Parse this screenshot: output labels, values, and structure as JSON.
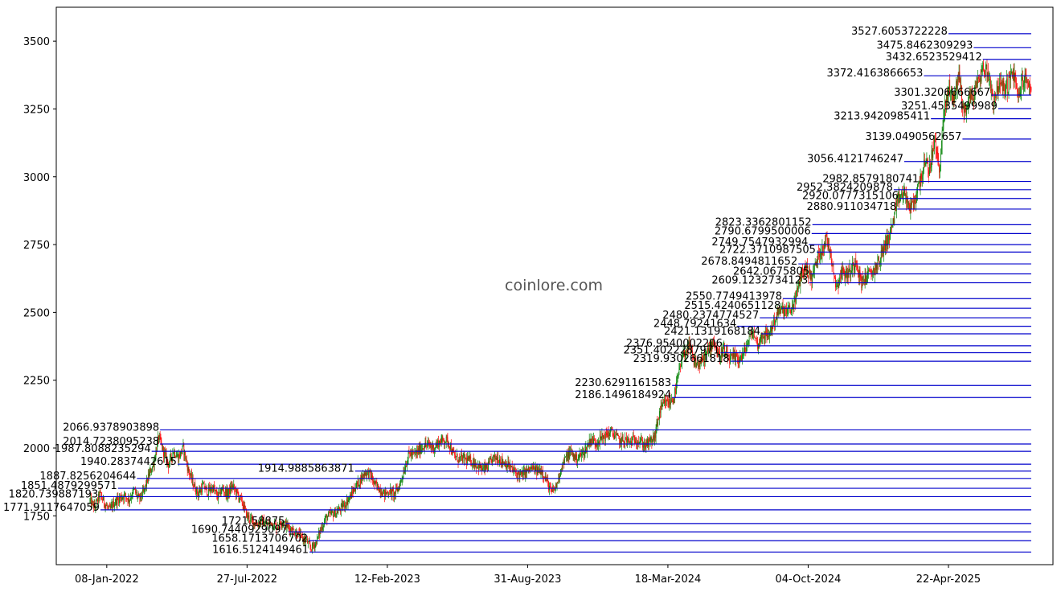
{
  "chart_data": {
    "type": "candlestick",
    "watermark": "coinlore.com",
    "xlim": [
      "2021-10-28",
      "2025-09-18"
    ],
    "ylim": [
      1570,
      3625
    ],
    "x_ticks": [
      {
        "date": "2022-01-08",
        "label": "08-Jan-2022"
      },
      {
        "date": "2022-07-27",
        "label": "27-Jul-2022"
      },
      {
        "date": "2023-02-12",
        "label": "12-Feb-2023"
      },
      {
        "date": "2023-08-31",
        "label": "31-Aug-2023"
      },
      {
        "date": "2024-03-18",
        "label": "18-Mar-2024"
      },
      {
        "date": "2024-10-04",
        "label": "04-Oct-2024"
      },
      {
        "date": "2025-04-22",
        "label": "22-Apr-2025"
      }
    ],
    "y_ticks": [
      {
        "value": 1750,
        "label": "1750"
      },
      {
        "value": 2000,
        "label": "2000"
      },
      {
        "value": 2250,
        "label": "2250"
      },
      {
        "value": 2500,
        "label": "2500"
      },
      {
        "value": 2750,
        "label": "2750"
      },
      {
        "value": 3000,
        "label": "3000"
      },
      {
        "value": 3250,
        "label": "3250"
      },
      {
        "value": 3500,
        "label": "3500"
      }
    ],
    "colors": {
      "up": "#008000",
      "down": "#ff0000",
      "levels": "#0000cc",
      "frame": "#000000"
    },
    "levels_end_date": "2025-08-18",
    "levels": [
      {
        "value": 3527.6053722228,
        "label": "3527.6053722228",
        "start": "2025-04-22"
      },
      {
        "value": 3475.8462309293,
        "label": "3475.8462309293",
        "start": "2025-05-28"
      },
      {
        "value": 3432.6523529412,
        "label": "3432.6523529412",
        "start": "2025-06-10"
      },
      {
        "value": 3372.4163866653,
        "label": "3372.4163866653",
        "start": "2025-03-18"
      },
      {
        "value": 3301.3206666667,
        "label": "3301.3206666667",
        "start": "2025-06-22"
      },
      {
        "value": 3251.4535499989,
        "label": "3251.4535499989",
        "start": "2025-07-02"
      },
      {
        "value": 3213.9420985411,
        "label": "3213.9420985411",
        "start": "2025-03-28"
      },
      {
        "value": 3139.0490562657,
        "label": "3139.0490562657",
        "start": "2025-05-12"
      },
      {
        "value": 3056.4121746247,
        "label": "3056.4121746247",
        "start": "2025-02-18"
      },
      {
        "value": 2982.8579180741,
        "label": "2982.8579180741",
        "start": "2025-03-12"
      },
      {
        "value": 2952.3824209878,
        "label": "2952.3824209878",
        "start": "2025-02-03"
      },
      {
        "value": 2920.0777315106,
        "label": "2920.0777315106",
        "start": "2025-02-11"
      },
      {
        "value": 2880.911034718,
        "label": "2880.911034718",
        "start": "2025-02-08"
      },
      {
        "value": 2823.3362801152,
        "label": "2823.3362801152",
        "start": "2024-10-10"
      },
      {
        "value": 2790.6799500006,
        "label": "2790.6799500006",
        "start": "2024-10-09"
      },
      {
        "value": 2749.7547932994,
        "label": "2749.7547932994",
        "start": "2024-10-05"
      },
      {
        "value": 2722.3710987505,
        "label": "2722.3710987505",
        "start": "2024-10-16"
      },
      {
        "value": 2678.8494811652,
        "label": "2678.8494811652",
        "start": "2024-09-20"
      },
      {
        "value": 2642.0675805,
        "label": "2642.0675805",
        "start": "2024-10-07"
      },
      {
        "value": 2609.1232734123,
        "label": "2609.1232734123",
        "start": "2024-10-05"
      },
      {
        "value": 2550.7749413978,
        "label": "2550.7749413978",
        "start": "2024-08-29"
      },
      {
        "value": 2515.4240651128,
        "label": "2515.4240651128",
        "start": "2024-08-27"
      },
      {
        "value": 2480.2374774527,
        "label": "2480.2374774527",
        "start": "2024-07-27"
      },
      {
        "value": 2448.79241634,
        "label": "2448.79241634",
        "start": "2024-06-25"
      },
      {
        "value": 2421.1319168184,
        "label": "2421.1319168184",
        "start": "2024-07-29"
      },
      {
        "value": 2376.9540002206,
        "label": "2376.9540002206",
        "start": "2024-06-05"
      },
      {
        "value": 2351.4022287971,
        "label": "2351.4022287971",
        "start": "2024-06-01"
      },
      {
        "value": 2319.9302661818,
        "label": "2319.9302661818",
        "start": "2024-06-15"
      },
      {
        "value": 2230.6291161583,
        "label": "2230.6291161583",
        "start": "2024-03-24"
      },
      {
        "value": 2186.1496184924,
        "label": "2186.1496184924",
        "start": "2024-03-24"
      },
      {
        "value": 2066.9378903898,
        "label": "2066.9378903898",
        "start": "2022-03-25"
      },
      {
        "value": 2014.7238095238,
        "label": "2014.7238095238",
        "start": "2022-03-25"
      },
      {
        "value": 1987.8088235294,
        "label": "1987.8088235294",
        "start": "2022-03-13"
      },
      {
        "value": 1940.2837442615,
        "label": "1940.2837442615",
        "start": "2022-04-19"
      },
      {
        "value": 1914.9885863871,
        "label": "1914.9885863871",
        "start": "2022-12-28"
      },
      {
        "value": 1887.8256204644,
        "label": "1887.8256204644",
        "start": "2022-02-20"
      },
      {
        "value": 1851.4879299571,
        "label": "1851.4879299571",
        "start": "2022-01-24"
      },
      {
        "value": 1820.739887193,
        "label": "1820.739887193",
        "start": "2021-12-28"
      },
      {
        "value": 1771.9117647059,
        "label": "1771.9117647059",
        "start": "2021-12-30"
      },
      {
        "value": 1721.58875,
        "label": "1721.58875",
        "start": "2022-09-20"
      },
      {
        "value": 1690.7440929097,
        "label": "1690.7440929097",
        "start": "2022-09-24"
      },
      {
        "value": 1658.1713706702,
        "label": "1658.1713706702",
        "start": "2022-10-23"
      },
      {
        "value": 1616.5124149461,
        "label": "1616.5124149461",
        "start": "2022-10-24"
      }
    ],
    "price_path": [
      [
        "2021-12-15",
        1805
      ],
      [
        "2021-12-22",
        1780
      ],
      [
        "2021-12-29",
        1830
      ],
      [
        "2022-01-05",
        1795
      ],
      [
        "2022-01-12",
        1770
      ],
      [
        "2022-01-19",
        1800
      ],
      [
        "2022-01-26",
        1815
      ],
      [
        "2022-02-02",
        1825
      ],
      [
        "2022-02-09",
        1810
      ],
      [
        "2022-02-16",
        1845
      ],
      [
        "2022-02-23",
        1810
      ],
      [
        "2022-03-02",
        1840
      ],
      [
        "2022-03-09",
        1900
      ],
      [
        "2022-03-16",
        1945
      ],
      [
        "2022-03-23",
        2040
      ],
      [
        "2022-03-30",
        1985
      ],
      [
        "2022-04-06",
        1940
      ],
      [
        "2022-04-13",
        1990
      ],
      [
        "2022-04-20",
        1965
      ],
      [
        "2022-04-27",
        2000
      ],
      [
        "2022-05-04",
        1920
      ],
      [
        "2022-05-11",
        1870
      ],
      [
        "2022-05-18",
        1830
      ],
      [
        "2022-05-25",
        1860
      ],
      [
        "2022-06-01",
        1840
      ],
      [
        "2022-06-08",
        1855
      ],
      [
        "2022-06-15",
        1820
      ],
      [
        "2022-06-22",
        1850
      ],
      [
        "2022-06-29",
        1830
      ],
      [
        "2022-07-06",
        1860
      ],
      [
        "2022-07-13",
        1830
      ],
      [
        "2022-07-20",
        1800
      ],
      [
        "2022-07-27",
        1750
      ],
      [
        "2022-08-03",
        1730
      ],
      [
        "2022-08-10",
        1720
      ],
      [
        "2022-08-17",
        1730
      ],
      [
        "2022-08-24",
        1715
      ],
      [
        "2022-08-31",
        1725
      ],
      [
        "2022-09-07",
        1710
      ],
      [
        "2022-09-14",
        1730
      ],
      [
        "2022-09-21",
        1715
      ],
      [
        "2022-09-28",
        1700
      ],
      [
        "2022-10-05",
        1690
      ],
      [
        "2022-10-12",
        1670
      ],
      [
        "2022-10-19",
        1660
      ],
      [
        "2022-10-26",
        1630
      ],
      [
        "2022-11-02",
        1650
      ],
      [
        "2022-11-09",
        1700
      ],
      [
        "2022-11-16",
        1740
      ],
      [
        "2022-11-23",
        1755
      ],
      [
        "2022-11-30",
        1760
      ],
      [
        "2022-12-07",
        1775
      ],
      [
        "2022-12-14",
        1795
      ],
      [
        "2022-12-21",
        1820
      ],
      [
        "2022-12-28",
        1855
      ],
      [
        "2023-01-04",
        1880
      ],
      [
        "2023-01-11",
        1910
      ],
      [
        "2023-01-18",
        1905
      ],
      [
        "2023-01-25",
        1865
      ],
      [
        "2023-02-01",
        1850
      ],
      [
        "2023-02-08",
        1830
      ],
      [
        "2023-02-15",
        1840
      ],
      [
        "2023-02-22",
        1830
      ],
      [
        "2023-03-01",
        1860
      ],
      [
        "2023-03-08",
        1920
      ],
      [
        "2023-03-15",
        1980
      ],
      [
        "2023-03-22",
        1975
      ],
      [
        "2023-03-29",
        1990
      ],
      [
        "2023-04-05",
        2010
      ],
      [
        "2023-04-12",
        2010
      ],
      [
        "2023-04-19",
        2000
      ],
      [
        "2023-04-26",
        2020
      ],
      [
        "2023-05-03",
        2030
      ],
      [
        "2023-05-10",
        2025
      ],
      [
        "2023-05-17",
        1975
      ],
      [
        "2023-05-24",
        1960
      ],
      [
        "2023-05-31",
        1960
      ],
      [
        "2023-06-07",
        1955
      ],
      [
        "2023-06-14",
        1950
      ],
      [
        "2023-06-21",
        1935
      ],
      [
        "2023-06-28",
        1920
      ],
      [
        "2023-07-05",
        1930
      ],
      [
        "2023-07-12",
        1960
      ],
      [
        "2023-07-19",
        1965
      ],
      [
        "2023-07-26",
        1950
      ],
      [
        "2023-08-02",
        1940
      ],
      [
        "2023-08-09",
        1920
      ],
      [
        "2023-08-16",
        1905
      ],
      [
        "2023-08-23",
        1900
      ],
      [
        "2023-08-30",
        1915
      ],
      [
        "2023-09-06",
        1925
      ],
      [
        "2023-09-13",
        1915
      ],
      [
        "2023-09-20",
        1920
      ],
      [
        "2023-09-27",
        1880
      ],
      [
        "2023-10-04",
        1835
      ],
      [
        "2023-10-11",
        1860
      ],
      [
        "2023-10-18",
        1930
      ],
      [
        "2023-10-25",
        1965
      ],
      [
        "2023-11-01",
        1985
      ],
      [
        "2023-11-08",
        1960
      ],
      [
        "2023-11-15",
        1975
      ],
      [
        "2023-11-22",
        1995
      ],
      [
        "2023-11-29",
        2035
      ],
      [
        "2023-12-06",
        2020
      ],
      [
        "2023-12-13",
        2035
      ],
      [
        "2023-12-20",
        2045
      ],
      [
        "2023-12-27",
        2060
      ],
      [
        "2024-01-03",
        2045
      ],
      [
        "2024-01-10",
        2025
      ],
      [
        "2024-01-17",
        2030
      ],
      [
        "2024-01-24",
        2020
      ],
      [
        "2024-01-31",
        2035
      ],
      [
        "2024-02-07",
        2025
      ],
      [
        "2024-02-14",
        2010
      ],
      [
        "2024-02-21",
        2020
      ],
      [
        "2024-02-28",
        2040
      ],
      [
        "2024-03-06",
        2130
      ],
      [
        "2024-03-13",
        2165
      ],
      [
        "2024-03-20",
        2165
      ],
      [
        "2024-03-27",
        2190
      ],
      [
        "2024-04-03",
        2280
      ],
      [
        "2024-04-10",
        2350
      ],
      [
        "2024-04-17",
        2370
      ],
      [
        "2024-04-24",
        2320
      ],
      [
        "2024-05-01",
        2305
      ],
      [
        "2024-05-08",
        2330
      ],
      [
        "2024-05-15",
        2360
      ],
      [
        "2024-05-22",
        2400
      ],
      [
        "2024-05-29",
        2340
      ],
      [
        "2024-06-05",
        2360
      ],
      [
        "2024-06-12",
        2325
      ],
      [
        "2024-06-19",
        2330
      ],
      [
        "2024-06-26",
        2330
      ],
      [
        "2024-07-03",
        2340
      ],
      [
        "2024-07-10",
        2390
      ],
      [
        "2024-07-17",
        2430
      ],
      [
        "2024-07-24",
        2380
      ],
      [
        "2024-07-31",
        2420
      ],
      [
        "2024-08-07",
        2410
      ],
      [
        "2024-08-14",
        2450
      ],
      [
        "2024-08-21",
        2495
      ],
      [
        "2024-08-28",
        2510
      ],
      [
        "2024-09-04",
        2500
      ],
      [
        "2024-09-11",
        2515
      ],
      [
        "2024-09-18",
        2570
      ],
      [
        "2024-09-25",
        2650
      ],
      [
        "2024-10-02",
        2660
      ],
      [
        "2024-10-09",
        2625
      ],
      [
        "2024-10-16",
        2690
      ],
      [
        "2024-10-23",
        2735
      ],
      [
        "2024-10-30",
        2770
      ],
      [
        "2024-11-06",
        2710
      ],
      [
        "2024-11-13",
        2590
      ],
      [
        "2024-11-20",
        2650
      ],
      [
        "2024-11-27",
        2640
      ],
      [
        "2024-12-04",
        2650
      ],
      [
        "2024-12-11",
        2700
      ],
      [
        "2024-12-18",
        2610
      ],
      [
        "2024-12-25",
        2630
      ],
      [
        "2025-01-01",
        2640
      ],
      [
        "2025-01-08",
        2665
      ],
      [
        "2025-01-15",
        2700
      ],
      [
        "2025-01-22",
        2755
      ],
      [
        "2025-01-29",
        2790
      ],
      [
        "2025-02-05",
        2870
      ],
      [
        "2025-02-12",
        2930
      ],
      [
        "2025-02-19",
        2935
      ],
      [
        "2025-02-26",
        2880
      ],
      [
        "2025-03-05",
        2910
      ],
      [
        "2025-03-12",
        2985
      ],
      [
        "2025-03-19",
        3045
      ],
      [
        "2025-03-26",
        3030
      ],
      [
        "2025-04-02",
        3130
      ],
      [
        "2025-04-09",
        3030
      ],
      [
        "2025-04-16",
        3240
      ],
      [
        "2025-04-23",
        3330
      ],
      [
        "2025-04-30",
        3290
      ],
      [
        "2025-05-07",
        3380
      ],
      [
        "2025-05-14",
        3230
      ],
      [
        "2025-05-21",
        3290
      ],
      [
        "2025-05-28",
        3300
      ],
      [
        "2025-06-04",
        3360
      ],
      [
        "2025-06-11",
        3400
      ],
      [
        "2025-06-18",
        3380
      ],
      [
        "2025-06-25",
        3280
      ],
      [
        "2025-07-02",
        3340
      ],
      [
        "2025-07-09",
        3325
      ],
      [
        "2025-07-16",
        3340
      ],
      [
        "2025-07-23",
        3390
      ],
      [
        "2025-07-30",
        3290
      ],
      [
        "2025-08-06",
        3360
      ],
      [
        "2025-08-13",
        3345
      ],
      [
        "2025-08-18",
        3340
      ]
    ]
  }
}
